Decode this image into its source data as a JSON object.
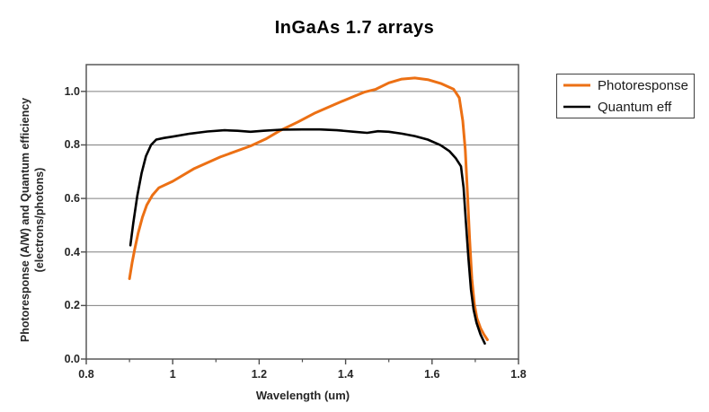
{
  "title": "InGaAs 1.7 arrays",
  "chart_data": {
    "type": "line",
    "title": "InGaAs 1.7 arrays",
    "xlabel": "Wavelength (um)",
    "ylabel_lines": [
      "Photoresponse (A/W) and Quantum efficiency",
      "(electrons/photons)"
    ],
    "xlim": [
      0.8,
      1.8
    ],
    "ylim": [
      0,
      1.1
    ],
    "grid": "horizontal",
    "legend_position": "right",
    "x_major_ticks": [
      0.8,
      1.0,
      1.2,
      1.4,
      1.6,
      1.8
    ],
    "x_tick_labels": [
      "0.8",
      "1",
      "1.2",
      "1.4",
      "1.6",
      "1.8"
    ],
    "x_minor_ticks": [
      0.9,
      1.1,
      1.3,
      1.5,
      1.7
    ],
    "y_major_ticks": [
      0,
      0.2,
      0.4,
      0.6,
      0.8,
      1.0
    ],
    "y_tick_labels": [
      "0.0",
      "0.2",
      "0.4",
      "0.6",
      "0.8",
      "1.0"
    ],
    "colors": {
      "gridline": "#7F7F7F",
      "axis": "#4D4D4D",
      "text": "#262626",
      "background": "#FFFFFF"
    },
    "series": [
      {
        "name": "Photoresponse",
        "color": "#EC7014",
        "width": 3,
        "points": [
          [
            0.9,
            0.3
          ],
          [
            0.906,
            0.36
          ],
          [
            0.912,
            0.41
          ],
          [
            0.92,
            0.47
          ],
          [
            0.93,
            0.53
          ],
          [
            0.94,
            0.575
          ],
          [
            0.953,
            0.612
          ],
          [
            0.968,
            0.64
          ],
          [
            1.0,
            0.664
          ],
          [
            1.05,
            0.712
          ],
          [
            1.11,
            0.755
          ],
          [
            1.18,
            0.796
          ],
          [
            1.215,
            0.822
          ],
          [
            1.25,
            0.855
          ],
          [
            1.29,
            0.886
          ],
          [
            1.33,
            0.92
          ],
          [
            1.38,
            0.955
          ],
          [
            1.42,
            0.982
          ],
          [
            1.445,
            0.998
          ],
          [
            1.47,
            1.008
          ],
          [
            1.5,
            1.032
          ],
          [
            1.53,
            1.046
          ],
          [
            1.56,
            1.05
          ],
          [
            1.59,
            1.044
          ],
          [
            1.62,
            1.03
          ],
          [
            1.65,
            1.008
          ],
          [
            1.663,
            0.976
          ],
          [
            1.671,
            0.89
          ],
          [
            1.677,
            0.78
          ],
          [
            1.682,
            0.62
          ],
          [
            1.687,
            0.45
          ],
          [
            1.692,
            0.3
          ],
          [
            1.698,
            0.205
          ],
          [
            1.704,
            0.152
          ],
          [
            1.712,
            0.116
          ],
          [
            1.72,
            0.092
          ],
          [
            1.728,
            0.072
          ]
        ]
      },
      {
        "name": "Quantum eff",
        "color": "#000000",
        "width": 2.6,
        "points": [
          [
            0.902,
            0.425
          ],
          [
            0.909,
            0.51
          ],
          [
            0.918,
            0.61
          ],
          [
            0.928,
            0.695
          ],
          [
            0.938,
            0.758
          ],
          [
            0.95,
            0.8
          ],
          [
            0.962,
            0.82
          ],
          [
            0.98,
            0.826
          ],
          [
            1.0,
            0.831
          ],
          [
            1.04,
            0.842
          ],
          [
            1.08,
            0.85
          ],
          [
            1.12,
            0.855
          ],
          [
            1.15,
            0.853
          ],
          [
            1.18,
            0.849
          ],
          [
            1.21,
            0.853
          ],
          [
            1.25,
            0.857
          ],
          [
            1.3,
            0.858
          ],
          [
            1.34,
            0.858
          ],
          [
            1.38,
            0.855
          ],
          [
            1.42,
            0.849
          ],
          [
            1.45,
            0.845
          ],
          [
            1.475,
            0.851
          ],
          [
            1.5,
            0.849
          ],
          [
            1.53,
            0.842
          ],
          [
            1.56,
            0.833
          ],
          [
            1.59,
            0.82
          ],
          [
            1.62,
            0.799
          ],
          [
            1.64,
            0.777
          ],
          [
            1.655,
            0.75
          ],
          [
            1.667,
            0.72
          ],
          [
            1.673,
            0.64
          ],
          [
            1.678,
            0.52
          ],
          [
            1.684,
            0.38
          ],
          [
            1.69,
            0.26
          ],
          [
            1.696,
            0.185
          ],
          [
            1.703,
            0.135
          ],
          [
            1.712,
            0.092
          ],
          [
            1.722,
            0.058
          ]
        ]
      }
    ]
  }
}
